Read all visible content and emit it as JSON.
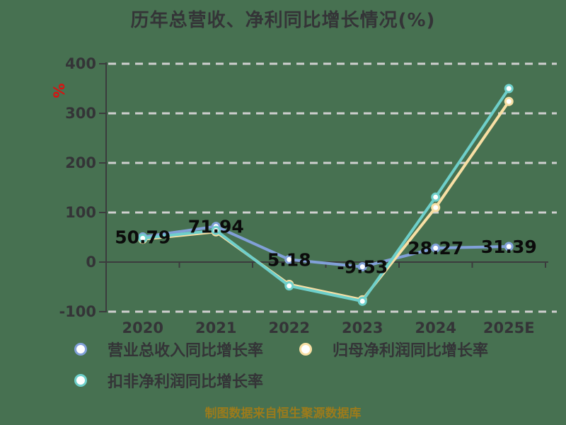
{
  "title": "历年总营收、净利同比增长情况(%)",
  "footer_note": "制图数据来自恒生聚源数据库",
  "y_axis": {
    "unit": "%",
    "ticks": [
      "400",
      "300",
      "200",
      "100",
      "0",
      "-100"
    ],
    "min": -100,
    "max": 400
  },
  "chart_data": {
    "type": "line",
    "categories": [
      "2020",
      "2021",
      "2022",
      "2023",
      "2024",
      "2025E"
    ],
    "ylim": [
      -100,
      400
    ],
    "grid": "dashed-horizontal",
    "legend_position": "bottom",
    "series": [
      {
        "name": "营业总收入同比增长率",
        "color": "#81a0d8",
        "values": [
          50.79,
          71.94,
          5.18,
          -9.53,
          28.27,
          31.39
        ],
        "labels": [
          "50.79",
          "71.94",
          "5.18",
          "-9.53",
          "28.27",
          "31.39"
        ]
      },
      {
        "name": "归母净利润同比增长率",
        "color": "#f8dfa4",
        "values": [
          46,
          61,
          -45,
          -76,
          110,
          324
        ]
      },
      {
        "name": "扣非净利润同比增长率",
        "color": "#6ecfca",
        "values": [
          48,
          64,
          -48,
          -79,
          131,
          350
        ]
      }
    ]
  },
  "colors": {
    "background": "#477151",
    "title": "#343437",
    "axis": "#3b3b3d",
    "grid": "#cfcfcf",
    "tick_text": "#343437",
    "value_label": "#0b0b0b",
    "unit": "#dc1010",
    "footer": "#9c7b1b"
  }
}
